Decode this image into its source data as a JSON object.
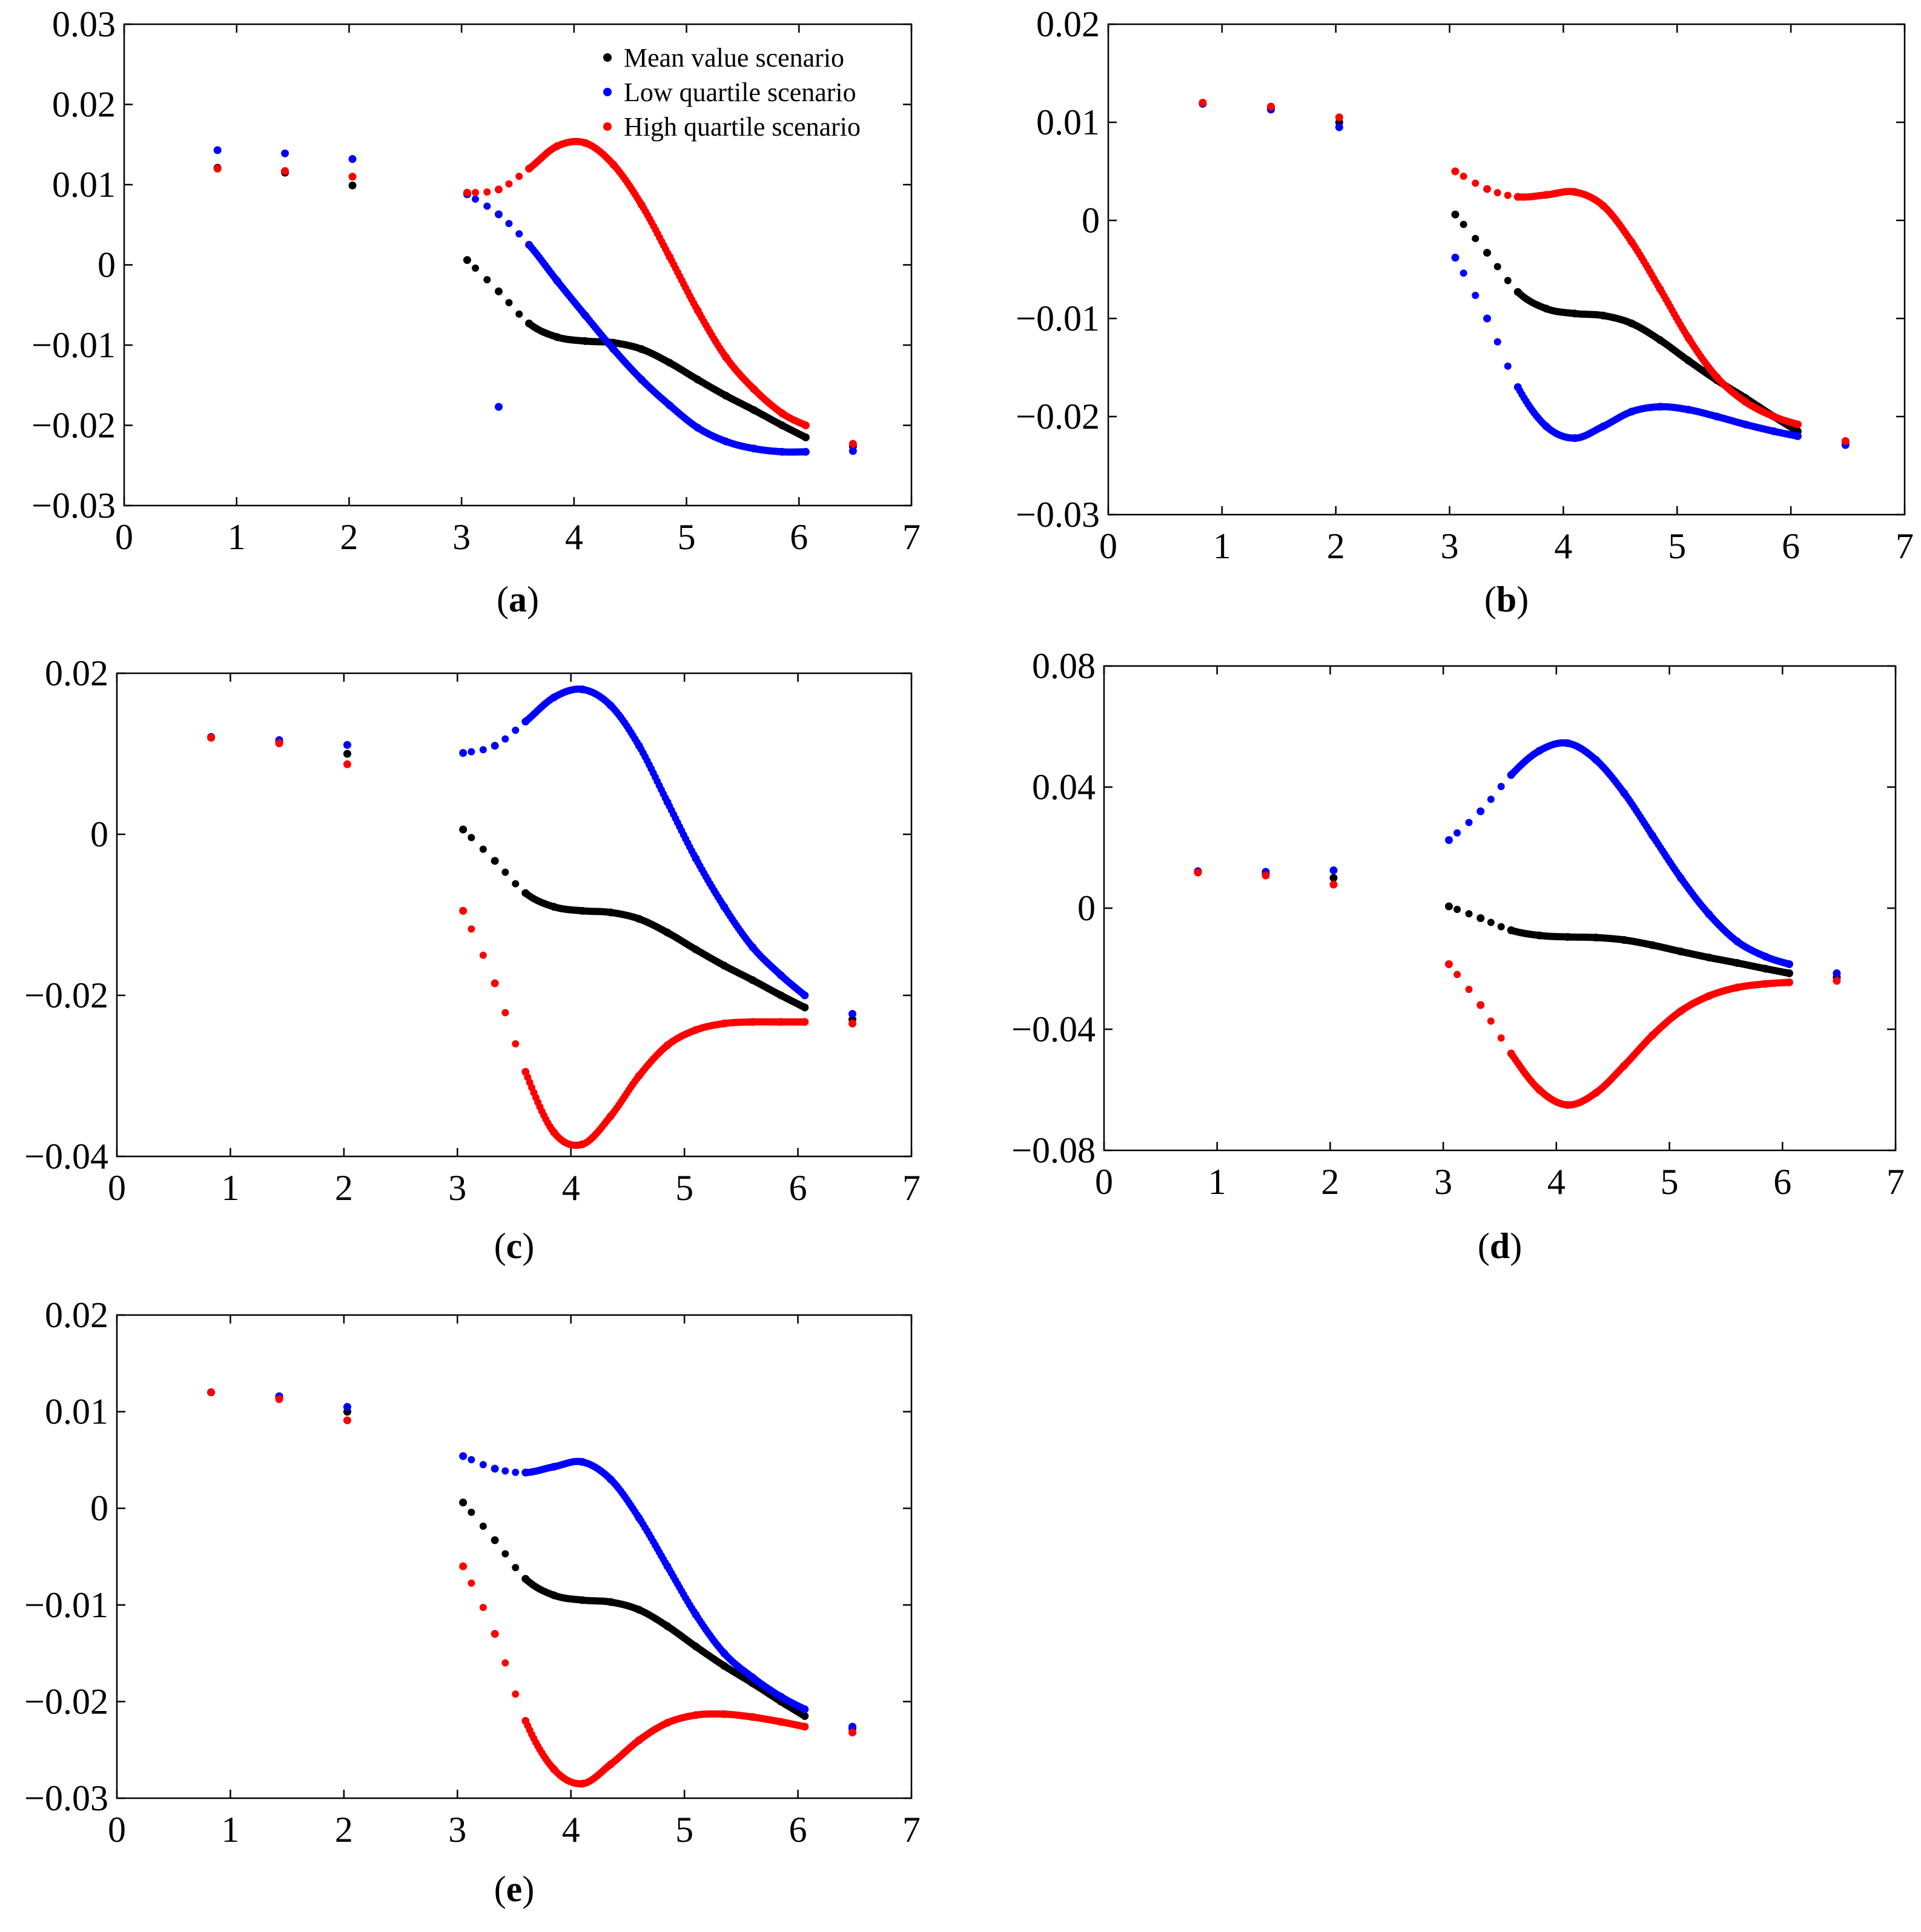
{
  "figure": {
    "title": ""
  },
  "legend": {
    "items": [
      {
        "name": "Mean value scenario",
        "color": "#000000"
      },
      {
        "name": "Low quartile scenario",
        "color": "#0000ff"
      },
      {
        "name": "High quartile scenario",
        "color": "#ff0000"
      }
    ]
  },
  "chart_data": [
    {
      "type": "scatter",
      "id": "a",
      "label": "(a)",
      "xlim": [
        0,
        7
      ],
      "ylim": [
        -0.03,
        0.03
      ],
      "xticks": [
        0,
        1,
        2,
        3,
        4,
        5,
        6,
        7
      ],
      "yticks": [
        -0.03,
        -0.02,
        -0.01,
        0,
        0.01,
        0.02,
        0.03
      ],
      "ytick_labels": [
        "−0.03",
        "−0.02",
        "−0.01",
        "0",
        "0.01",
        "0.02",
        "0.03"
      ],
      "legend": "top-right",
      "series": [
        {
          "name": "Mean value scenario",
          "color": "#000000",
          "x": [
            0.83,
            1.43,
            2.03,
            3.05,
            3.33,
            3.6,
            3.85,
            4.1,
            4.35,
            4.6,
            4.85,
            5.1,
            5.35,
            5.6,
            5.85,
            6.06,
            6.48
          ],
          "y": [
            0.0121,
            0.0115,
            0.0099,
            0.0006,
            -0.0033,
            -0.0073,
            -0.009,
            -0.0095,
            -0.0097,
            -0.0105,
            -0.0122,
            -0.0143,
            -0.0163,
            -0.0181,
            -0.02,
            -0.0215,
            -0.0226
          ]
        },
        {
          "name": "Low quartile scenario",
          "color": "#0000ff",
          "x": [
            0.83,
            1.43,
            2.03,
            3.05,
            3.33,
            3.33,
            3.6,
            3.85,
            4.1,
            4.35,
            4.6,
            4.85,
            5.1,
            5.35,
            5.6,
            5.85,
            6.06,
            6.48
          ],
          "y": [
            0.0143,
            0.0139,
            0.0132,
            0.0088,
            0.0063,
            -0.0177,
            0.0025,
            -0.002,
            -0.0063,
            -0.0105,
            -0.0143,
            -0.0175,
            -0.0203,
            -0.022,
            -0.0229,
            -0.0233,
            -0.0233,
            -0.0232
          ]
        },
        {
          "name": "High quartile scenario",
          "color": "#ff0000",
          "x": [
            0.83,
            1.43,
            2.03,
            3.05,
            3.33,
            3.6,
            3.85,
            4.1,
            4.35,
            4.6,
            4.85,
            5.1,
            5.35,
            5.6,
            5.85,
            6.06,
            6.48
          ],
          "y": [
            0.012,
            0.0117,
            0.011,
            0.009,
            0.0094,
            0.012,
            0.0148,
            0.0152,
            0.0125,
            0.0075,
            0.001,
            -0.0057,
            -0.0115,
            -0.0155,
            -0.0185,
            -0.02,
            -0.0223
          ]
        }
      ]
    },
    {
      "type": "scatter",
      "id": "b",
      "label": "(b)",
      "xlim": [
        0,
        7
      ],
      "ylim": [
        -0.03,
        0.02
      ],
      "xticks": [
        0,
        1,
        2,
        3,
        4,
        5,
        6,
        7
      ],
      "yticks": [
        -0.03,
        -0.02,
        -0.01,
        0,
        0.01,
        0.02
      ],
      "ytick_labels": [
        "−0.03",
        "−0.02",
        "−0.01",
        "0",
        "0.01",
        "0.02"
      ],
      "series": [
        {
          "name": "Mean value scenario",
          "color": "#000000",
          "x": [
            0.83,
            1.43,
            2.03,
            3.05,
            3.33,
            3.6,
            3.85,
            4.1,
            4.35,
            4.6,
            4.85,
            5.1,
            5.35,
            5.6,
            5.85,
            6.06,
            6.48
          ],
          "y": [
            0.0119,
            0.0114,
            0.01,
            0.0006,
            -0.0033,
            -0.0073,
            -0.009,
            -0.0095,
            -0.0097,
            -0.0105,
            -0.0122,
            -0.0143,
            -0.0163,
            -0.0181,
            -0.02,
            -0.0215,
            -0.0226
          ]
        },
        {
          "name": "Low quartile scenario",
          "color": "#0000ff",
          "x": [
            0.83,
            1.43,
            2.03,
            3.05,
            3.33,
            3.6,
            3.85,
            4.1,
            4.35,
            4.6,
            4.85,
            5.1,
            5.35,
            5.6,
            5.85,
            6.06,
            6.48
          ],
          "y": [
            0.0119,
            0.0113,
            0.0095,
            -0.0038,
            -0.01,
            -0.017,
            -0.021,
            -0.0222,
            -0.021,
            -0.0195,
            -0.019,
            -0.0193,
            -0.02,
            -0.0208,
            -0.0215,
            -0.022,
            -0.0229
          ]
        },
        {
          "name": "High quartile scenario",
          "color": "#ff0000",
          "x": [
            0.83,
            1.43,
            2.03,
            3.05,
            3.33,
            3.6,
            3.85,
            4.1,
            4.35,
            4.6,
            4.85,
            5.1,
            5.35,
            5.6,
            5.85,
            6.06,
            6.48
          ],
          "y": [
            0.012,
            0.0116,
            0.0105,
            0.005,
            0.0032,
            0.0024,
            0.0026,
            0.0029,
            0.0015,
            -0.0022,
            -0.007,
            -0.012,
            -0.016,
            -0.0185,
            -0.02,
            -0.0208,
            -0.0225
          ]
        }
      ]
    },
    {
      "type": "scatter",
      "id": "c",
      "label": "(c)",
      "xlim": [
        0,
        7
      ],
      "ylim": [
        -0.04,
        0.02
      ],
      "xticks": [
        0,
        1,
        2,
        3,
        4,
        5,
        6,
        7
      ],
      "yticks": [
        -0.04,
        -0.02,
        0,
        0.02
      ],
      "ytick_labels": [
        "−0.04",
        "−0.02",
        "0",
        "0.02"
      ],
      "series": [
        {
          "name": "Mean value scenario",
          "color": "#000000",
          "x": [
            0.83,
            1.43,
            2.03,
            3.05,
            3.33,
            3.6,
            3.85,
            4.1,
            4.35,
            4.6,
            4.85,
            5.1,
            5.35,
            5.6,
            5.85,
            6.06,
            6.48
          ],
          "y": [
            0.012,
            0.0115,
            0.01,
            0.0006,
            -0.0033,
            -0.0073,
            -0.009,
            -0.0095,
            -0.0097,
            -0.0105,
            -0.0122,
            -0.0143,
            -0.0163,
            -0.0181,
            -0.02,
            -0.0215,
            -0.023
          ]
        },
        {
          "name": "Low quartile scenario",
          "color": "#0000ff",
          "x": [
            0.83,
            1.43,
            2.03,
            3.05,
            3.33,
            3.6,
            3.85,
            4.1,
            4.35,
            4.6,
            4.85,
            5.1,
            5.35,
            5.6,
            5.85,
            6.06,
            6.48
          ],
          "y": [
            0.0121,
            0.0117,
            0.0111,
            0.0101,
            0.011,
            0.014,
            0.017,
            0.018,
            0.016,
            0.011,
            0.004,
            -0.003,
            -0.009,
            -0.014,
            -0.0175,
            -0.02,
            -0.0223
          ]
        },
        {
          "name": "High quartile scenario",
          "color": "#ff0000",
          "x": [
            0.83,
            1.43,
            2.03,
            3.05,
            3.33,
            3.6,
            3.85,
            4.1,
            4.35,
            4.6,
            4.85,
            5.1,
            5.35,
            5.6,
            5.85,
            6.06,
            6.48
          ],
          "y": [
            0.012,
            0.0113,
            0.0087,
            -0.0095,
            -0.0185,
            -0.0295,
            -0.037,
            -0.0385,
            -0.035,
            -0.03,
            -0.0262,
            -0.0243,
            -0.0235,
            -0.0233,
            -0.0233,
            -0.0233,
            -0.0235
          ]
        }
      ]
    },
    {
      "type": "scatter",
      "id": "d",
      "label": "(d)",
      "xlim": [
        0,
        7
      ],
      "ylim": [
        -0.08,
        0.08
      ],
      "xticks": [
        0,
        1,
        2,
        3,
        4,
        5,
        6,
        7
      ],
      "yticks": [
        -0.08,
        -0.04,
        0,
        0.04,
        0.08
      ],
      "ytick_labels": [
        "−0.08",
        "−0.04",
        "0",
        "0.04",
        "0.08"
      ],
      "series": [
        {
          "name": "Mean value scenario",
          "color": "#000000",
          "x": [
            0.83,
            1.43,
            2.03,
            3.05,
            3.33,
            3.6,
            3.85,
            4.1,
            4.35,
            4.6,
            4.85,
            5.1,
            5.35,
            5.6,
            5.85,
            6.06,
            6.48
          ],
          "y": [
            0.012,
            0.0115,
            0.01,
            0.0006,
            -0.0033,
            -0.0073,
            -0.009,
            -0.0095,
            -0.0097,
            -0.0105,
            -0.0122,
            -0.0143,
            -0.0163,
            -0.0181,
            -0.02,
            -0.0215,
            -0.0228
          ]
        },
        {
          "name": "Low quartile scenario",
          "color": "#0000ff",
          "x": [
            0.83,
            1.43,
            2.03,
            3.05,
            3.33,
            3.6,
            3.85,
            4.1,
            4.35,
            4.6,
            4.85,
            5.1,
            5.35,
            5.6,
            5.85,
            6.06,
            6.48
          ],
          "y": [
            0.0122,
            0.012,
            0.0125,
            0.0225,
            0.032,
            0.044,
            0.052,
            0.0545,
            0.049,
            0.038,
            0.024,
            0.01,
            -0.002,
            -0.011,
            -0.016,
            -0.0185,
            -0.0215
          ]
        },
        {
          "name": "High quartile scenario",
          "color": "#ff0000",
          "x": [
            0.83,
            1.43,
            2.03,
            3.05,
            3.33,
            3.6,
            3.85,
            4.1,
            4.35,
            4.6,
            4.85,
            5.1,
            5.35,
            5.6,
            5.85,
            6.06,
            6.48
          ],
          "y": [
            0.0118,
            0.0108,
            0.0078,
            -0.0185,
            -0.032,
            -0.048,
            -0.06,
            -0.065,
            -0.061,
            -0.052,
            -0.042,
            -0.034,
            -0.029,
            -0.0262,
            -0.025,
            -0.0245,
            -0.024
          ]
        }
      ]
    },
    {
      "type": "scatter",
      "id": "e",
      "label": "(e)",
      "xlim": [
        0,
        7
      ],
      "ylim": [
        -0.03,
        0.02
      ],
      "xticks": [
        0,
        1,
        2,
        3,
        4,
        5,
        6,
        7
      ],
      "yticks": [
        -0.03,
        -0.02,
        -0.01,
        0,
        0.01,
        0.02
      ],
      "ytick_labels": [
        "−0.03",
        "−0.02",
        "−0.01",
        "0",
        "0.01",
        "0.02"
      ],
      "series": [
        {
          "name": "Mean value scenario",
          "color": "#000000",
          "x": [
            0.83,
            1.43,
            2.03,
            3.05,
            3.33,
            3.6,
            3.85,
            4.1,
            4.35,
            4.6,
            4.85,
            5.1,
            5.35,
            5.6,
            5.85,
            6.06,
            6.48
          ],
          "y": [
            0.012,
            0.0115,
            0.01,
            0.0006,
            -0.0033,
            -0.0073,
            -0.009,
            -0.0095,
            -0.0097,
            -0.0105,
            -0.0122,
            -0.0143,
            -0.0163,
            -0.0181,
            -0.02,
            -0.0215,
            -0.0228
          ]
        },
        {
          "name": "Low quartile scenario",
          "color": "#0000ff",
          "x": [
            0.83,
            1.43,
            2.03,
            3.05,
            3.33,
            3.6,
            3.85,
            4.1,
            4.35,
            4.6,
            4.85,
            5.1,
            5.35,
            5.6,
            5.85,
            6.06,
            6.48
          ],
          "y": [
            0.012,
            0.0116,
            0.0105,
            0.0054,
            0.0041,
            0.0037,
            0.0043,
            0.0048,
            0.003,
            -0.001,
            -0.006,
            -0.011,
            -0.015,
            -0.0175,
            -0.0195,
            -0.0208,
            -0.0226
          ]
        },
        {
          "name": "High quartile scenario",
          "color": "#ff0000",
          "x": [
            0.83,
            1.43,
            2.03,
            3.05,
            3.33,
            3.6,
            3.85,
            4.1,
            4.35,
            4.6,
            4.85,
            5.1,
            5.35,
            5.6,
            5.85,
            6.06,
            6.48
          ],
          "y": [
            0.012,
            0.0113,
            0.0091,
            -0.006,
            -0.013,
            -0.022,
            -0.027,
            -0.0285,
            -0.0265,
            -0.024,
            -0.0222,
            -0.0214,
            -0.0213,
            -0.0216,
            -0.0221,
            -0.0226,
            -0.0232
          ]
        }
      ]
    }
  ]
}
